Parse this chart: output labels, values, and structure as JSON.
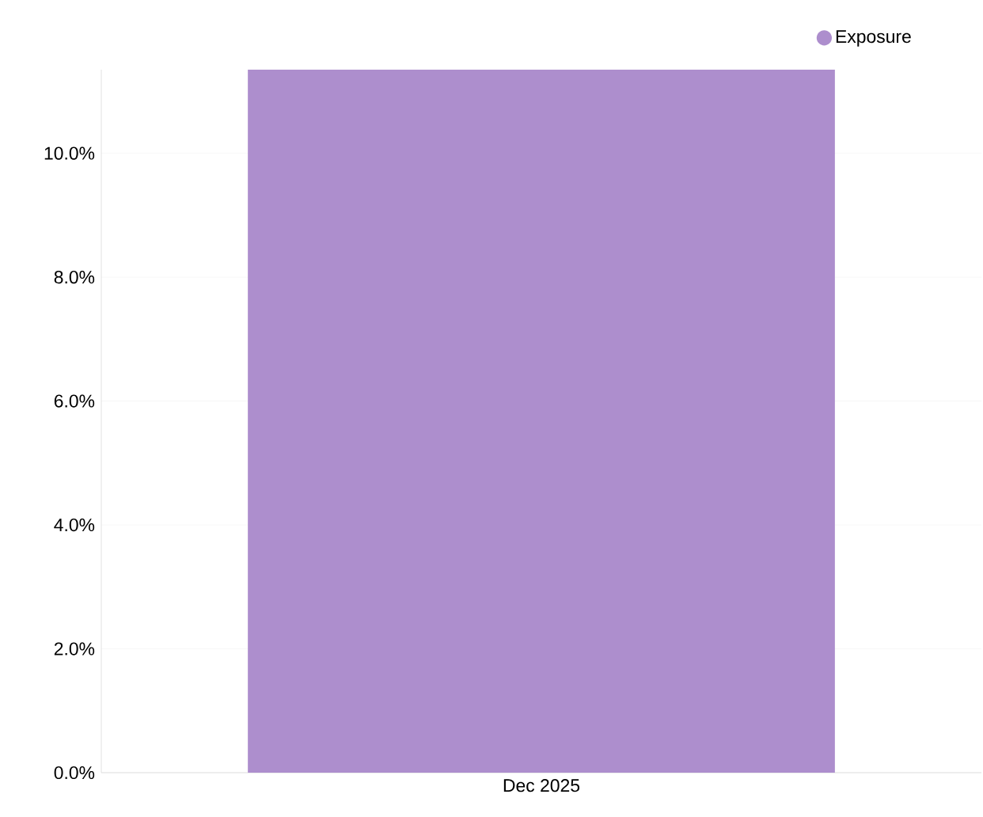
{
  "chart_data": {
    "type": "bar",
    "categories": [
      "Dec 2025"
    ],
    "series": [
      {
        "name": "Exposure",
        "color": "#ad8ecd",
        "values": [
          11.35
        ]
      }
    ],
    "ylim": [
      0,
      11.35
    ],
    "yticks": [
      {
        "value": 0,
        "label": "0.0%"
      },
      {
        "value": 2,
        "label": "2.0%"
      },
      {
        "value": 4,
        "label": "4.0%"
      },
      {
        "value": 6,
        "label": "6.0%"
      },
      {
        "value": 8,
        "label": "8.0%"
      },
      {
        "value": 10,
        "label": "10.0%"
      }
    ],
    "grid": "y",
    "legend": "top right",
    "marker": "circle"
  }
}
